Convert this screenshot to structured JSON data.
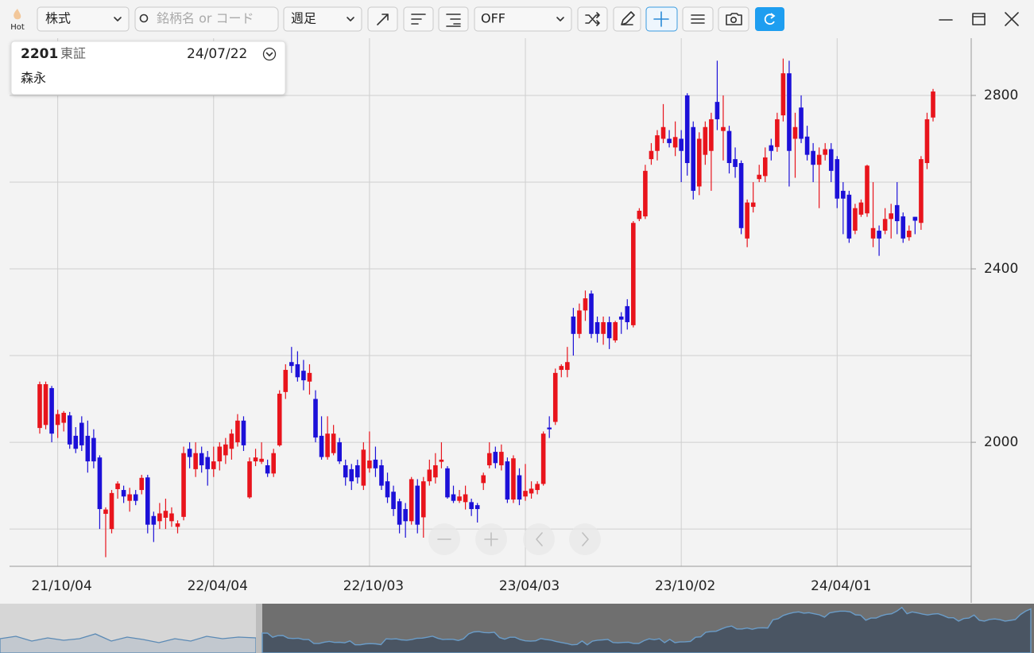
{
  "ui": {
    "hot": "Hot",
    "market": "株式",
    "search_placeholder": "銘柄名 or コード",
    "period": "週足",
    "overlay": "OFF"
  },
  "info": {
    "code": "2201",
    "exchange": "東証",
    "date": "24/07/22",
    "name": "森永"
  },
  "chart_data": {
    "type": "candlestick",
    "categories": [
      null,
      null,
      null,
      "21/10/04",
      null,
      null,
      null,
      null,
      null,
      null,
      null,
      null,
      null,
      null,
      null,
      null,
      null,
      null,
      null,
      null,
      null,
      null,
      null,
      null,
      null,
      null,
      null,
      null,
      null,
      "22/04/04",
      null,
      null,
      null,
      null,
      null,
      null,
      null,
      null,
      null,
      null,
      null,
      null,
      null,
      null,
      null,
      null,
      null,
      null,
      null,
      null,
      null,
      null,
      null,
      null,
      null,
      "22/10/03",
      null,
      null,
      null,
      null,
      null,
      null,
      null,
      null,
      null,
      null,
      null,
      null,
      null,
      null,
      null,
      null,
      null,
      null,
      null,
      null,
      null,
      null,
      null,
      null,
      null,
      "23/04/03",
      null,
      null,
      null,
      null,
      null,
      null,
      null,
      null,
      null,
      null,
      null,
      null,
      null,
      null,
      null,
      null,
      null,
      null,
      null,
      null,
      null,
      null,
      null,
      null,
      null,
      "23/10/02",
      null,
      null,
      null,
      null,
      null,
      null,
      null,
      null,
      null,
      null,
      null,
      null,
      null,
      null,
      null,
      null,
      null,
      null,
      null,
      null,
      null,
      null,
      null,
      null,
      null,
      "24/04/01",
      null,
      null,
      null,
      null,
      null,
      null,
      null,
      null,
      null,
      null,
      null,
      null,
      null,
      null,
      null,
      null
    ],
    "open": [
      2033,
      2040,
      2125,
      2040,
      2045,
      2062,
      2015,
      2045,
      2015,
      2010,
      1965,
      1835,
      1800,
      1892,
      1890,
      1865,
      1880,
      1890,
      1919,
      1830,
      1818,
      1826,
      1818,
      1805,
      1828,
      1985,
      1938,
      1975,
      1966,
      1938,
      1956,
      1970,
      1985,
      2000,
      2050,
      1873,
      1956,
      1955,
      1947,
      1928,
      1993,
      2116,
      2185,
      2180,
      2165,
      2140,
      2100,
      2015,
      1966,
      1975,
      2000,
      1947,
      1938,
      1947,
      1900,
      1940,
      1960,
      1947,
      1910,
      1886,
      1864,
      1846,
      1818,
      1900,
      1827,
      1910,
      1919,
      1955,
      1940,
      1880,
      1865,
      1862,
      1862,
      1855,
      1906,
      1947,
      1978,
      1947,
      1956,
      1868,
      1924,
      1875,
      1882,
      1890,
      1904,
      2034,
      2047,
      2167,
      2167,
      2290,
      2250,
      2304,
      2343,
      2277,
      2250,
      2277,
      2235,
      2290,
      2314,
      2270,
      2515,
      2521,
      2653,
      2672,
      2700,
      2700,
      2680,
      2700,
      2800,
      2727,
      2590,
      2663,
      2672,
      2785,
      2718,
      2718,
      2653,
      2644,
      2470,
      2543,
      2607,
      2614,
      2685,
      2681,
      2754,
      2851,
      2700,
      2772,
      2705,
      2672,
      2640,
      2663,
      2676,
      2653,
      2580,
      2571,
      2488,
      2525,
      2528,
      2470,
      2488,
      2488,
      2515,
      2547,
      2521,
      2473,
      2520,
      2506,
      2644,
      2749
    ],
    "high": [
      2140,
      2140,
      2130,
      2075,
      2072,
      2070,
      2035,
      2060,
      2050,
      2030,
      1970,
      1850,
      1890,
      1910,
      1900,
      1895,
      1890,
      1925,
      1925,
      1840,
      1860,
      1870,
      1850,
      1820,
      1990,
      2000,
      2000,
      1990,
      1980,
      1990,
      2000,
      2010,
      2030,
      2065,
      2060,
      1965,
      1985,
      2000,
      1960,
      1985,
      2120,
      2180,
      2220,
      2210,
      2190,
      2180,
      2120,
      2060,
      2060,
      2040,
      2010,
      1960,
      1950,
      1960,
      2000,
      2025,
      1990,
      1960,
      1930,
      1900,
      1870,
      1860,
      1920,
      1915,
      1920,
      1960,
      1975,
      2000,
      1945,
      1900,
      1890,
      1900,
      1870,
      1860,
      1930,
      2000,
      1990,
      1995,
      1965,
      1970,
      1940,
      1950,
      1910,
      1910,
      2025,
      2060,
      2170,
      2180,
      2220,
      2310,
      2320,
      2350,
      2350,
      2290,
      2290,
      2290,
      2280,
      2300,
      2330,
      2510,
      2540,
      2640,
      2690,
      2720,
      2780,
      2720,
      2740,
      2720,
      2805,
      2740,
      2715,
      2740,
      2760,
      2880,
      2800,
      2730,
      2680,
      2650,
      2560,
      2600,
      2640,
      2680,
      2700,
      2760,
      2885,
      2880,
      2760,
      2800,
      2730,
      2690,
      2680,
      2690,
      2690,
      2660,
      2600,
      2580,
      2550,
      2560,
      2640,
      2600,
      2500,
      2540,
      2550,
      2600,
      2530,
      2500,
      2520,
      2660,
      2760,
      2815
    ],
    "low": [
      2020,
      2030,
      2000,
      2010,
      2025,
      1985,
      1975,
      1980,
      1930,
      1940,
      1800,
      1735,
      1790,
      1870,
      1860,
      1840,
      1855,
      1880,
      1790,
      1770,
      1800,
      1800,
      1805,
      1790,
      1820,
      1940,
      1920,
      1930,
      1900,
      1920,
      1935,
      1950,
      1960,
      1990,
      1980,
      1870,
      1945,
      1950,
      1920,
      1920,
      1990,
      2100,
      2160,
      2140,
      2120,
      2110,
      2000,
      1960,
      1960,
      1970,
      1950,
      1900,
      1890,
      1905,
      1890,
      1930,
      1920,
      1890,
      1860,
      1830,
      1790,
      1780,
      1810,
      1790,
      1780,
      1900,
      1905,
      1940,
      1870,
      1860,
      1860,
      1845,
      1830,
      1815,
      1890,
      1940,
      1940,
      1935,
      1860,
      1860,
      1855,
      1865,
      1870,
      1880,
      1900,
      2010,
      2040,
      2150,
      2150,
      2200,
      2240,
      2280,
      2240,
      2230,
      2225,
      2215,
      2230,
      2250,
      2260,
      2265,
      2510,
      2515,
      2640,
      2650,
      2690,
      2680,
      2660,
      2600,
      2615,
      2560,
      2570,
      2640,
      2580,
      2720,
      2650,
      2620,
      2610,
      2480,
      2450,
      2530,
      2600,
      2600,
      2650,
      2670,
      2740,
      2590,
      2610,
      2690,
      2650,
      2600,
      2540,
      2650,
      2600,
      2540,
      2480,
      2460,
      2480,
      2520,
      2520,
      2450,
      2430,
      2480,
      2470,
      2480,
      2460,
      2465,
      2480,
      2490,
      2630,
      2740
    ],
    "close": [
      2134,
      2134,
      2020,
      2065,
      2068,
      1995,
      1985,
      1993,
      1956,
      1956,
      1846,
      1845,
      1883,
      1905,
      1875,
      1880,
      1865,
      1918,
      1810,
      1810,
      1836,
      1842,
      1836,
      1813,
      1975,
      1966,
      1975,
      1947,
      1938,
      1956,
      1990,
      1995,
      2020,
      2050,
      1993,
      1956,
      1965,
      1962,
      1928,
      1975,
      2112,
      2167,
      2176,
      2150,
      2143,
      2160,
      2011,
      1966,
      2020,
      2020,
      1956,
      1919,
      1910,
      1919,
      1983,
      1958,
      1940,
      1900,
      1873,
      1846,
      1810,
      1818,
      1915,
      1810,
      1910,
      1937,
      1947,
      1960,
      1873,
      1865,
      1875,
      1880,
      1846,
      1846,
      1924,
      1975,
      1952,
      1978,
      1868,
      1963,
      1868,
      1888,
      1893,
      1904,
      2020,
      2030,
      2160,
      2176,
      2185,
      2250,
      2304,
      2332,
      2250,
      2250,
      2277,
      2240,
      2277,
      2283,
      2277,
      2506,
      2534,
      2626,
      2672,
      2708,
      2727,
      2690,
      2704,
      2672,
      2644,
      2580,
      2700,
      2727,
      2745,
      2745,
      2727,
      2644,
      2635,
      2494,
      2553,
      2553,
      2617,
      2657,
      2672,
      2745,
      2851,
      2672,
      2727,
      2700,
      2663,
      2640,
      2663,
      2676,
      2626,
      2562,
      2562,
      2470,
      2540,
      2553,
      2638,
      2494,
      2470,
      2515,
      2528,
      2510,
      2470,
      2488,
      2511,
      2653,
      2745,
      2809
    ],
    "up_color": "#e8141c",
    "down_color": "#1c10d8",
    "ylim": [
      1714,
      2932
    ],
    "yticks": [
      2000,
      2400,
      2800
    ],
    "y_gridlines": [
      1800,
      2000,
      2200,
      2400,
      2600,
      2800
    ],
    "grid": true
  }
}
